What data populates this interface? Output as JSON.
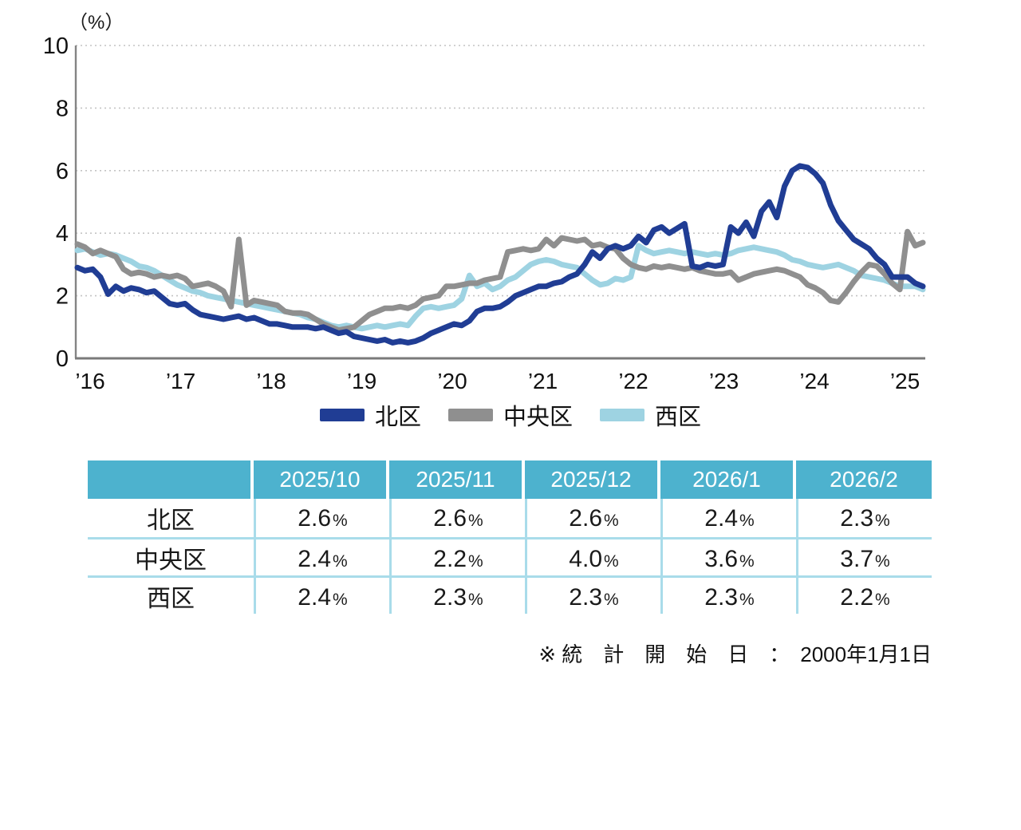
{
  "chart": {
    "unit_label": "（%）"
  },
  "chart_data": {
    "type": "line",
    "title": "",
    "ylabel": "%",
    "ylim": [
      0,
      10
    ],
    "y_tick_step": 2,
    "y_ticks": [
      "10",
      "8",
      "6",
      "4",
      "2",
      "0"
    ],
    "x_ticks": [
      "’16",
      "’17",
      "’18",
      "’19",
      "’20",
      "’21",
      "’22",
      "’23",
      "’24",
      "’25"
    ],
    "x_interval": "monthly",
    "grid": "dotted-horizontal",
    "legend_position": "bottom",
    "series": [
      {
        "name": "北区",
        "color": "#203d94",
        "values": [
          2.9,
          2.8,
          2.85,
          2.6,
          2.05,
          2.3,
          2.15,
          2.25,
          2.2,
          2.1,
          2.15,
          1.95,
          1.75,
          1.7,
          1.75,
          1.55,
          1.4,
          1.35,
          1.3,
          1.25,
          1.3,
          1.35,
          1.25,
          1.3,
          1.2,
          1.1,
          1.1,
          1.05,
          1.0,
          1.0,
          1.0,
          0.95,
          1.0,
          0.9,
          0.8,
          0.85,
          0.7,
          0.65,
          0.6,
          0.55,
          0.6,
          0.5,
          0.55,
          0.5,
          0.55,
          0.65,
          0.8,
          0.9,
          1.0,
          1.1,
          1.05,
          1.2,
          1.5,
          1.6,
          1.6,
          1.65,
          1.8,
          2.0,
          2.1,
          2.2,
          2.3,
          2.3,
          2.4,
          2.45,
          2.6,
          2.7,
          3.0,
          3.4,
          3.2,
          3.5,
          3.6,
          3.5,
          3.6,
          3.9,
          3.7,
          4.1,
          4.2,
          4.0,
          4.15,
          4.3,
          2.95,
          2.9,
          3.0,
          2.95,
          3.0,
          4.2,
          4.0,
          4.35,
          3.9,
          4.7,
          5.0,
          4.5,
          5.5,
          6.0,
          6.15,
          6.1,
          5.9,
          5.6,
          4.9,
          4.4,
          4.1,
          3.8,
          3.65,
          3.5,
          3.2,
          3.0,
          2.6,
          2.6,
          2.6,
          2.4,
          2.3
        ]
      },
      {
        "name": "中央区",
        "color": "#8f8f8f",
        "values": [
          3.65,
          3.55,
          3.35,
          3.45,
          3.35,
          3.25,
          2.85,
          2.7,
          2.75,
          2.7,
          2.6,
          2.65,
          2.6,
          2.65,
          2.55,
          2.3,
          2.35,
          2.4,
          2.3,
          2.15,
          1.65,
          3.8,
          1.7,
          1.85,
          1.8,
          1.75,
          1.7,
          1.5,
          1.45,
          1.45,
          1.4,
          1.25,
          1.1,
          1.0,
          0.9,
          0.95,
          1.0,
          1.2,
          1.4,
          1.5,
          1.6,
          1.6,
          1.65,
          1.6,
          1.7,
          1.9,
          1.95,
          2.0,
          2.3,
          2.3,
          2.35,
          2.4,
          2.4,
          2.5,
          2.55,
          2.6,
          3.4,
          3.45,
          3.5,
          3.45,
          3.5,
          3.8,
          3.6,
          3.85,
          3.8,
          3.75,
          3.8,
          3.6,
          3.65,
          3.55,
          3.5,
          3.2,
          3.0,
          2.9,
          2.85,
          2.95,
          2.9,
          2.95,
          2.9,
          2.85,
          2.9,
          2.8,
          2.75,
          2.7,
          2.7,
          2.75,
          2.5,
          2.6,
          2.7,
          2.75,
          2.8,
          2.85,
          2.8,
          2.7,
          2.6,
          2.35,
          2.25,
          2.1,
          1.85,
          1.8,
          2.1,
          2.45,
          2.75,
          3.0,
          2.95,
          2.7,
          2.4,
          2.2,
          4.05,
          3.6,
          3.7
        ]
      },
      {
        "name": "西区",
        "color": "#9ed3e2",
        "values": [
          3.45,
          3.5,
          3.4,
          3.3,
          3.35,
          3.3,
          3.2,
          3.1,
          2.95,
          2.9,
          2.8,
          2.65,
          2.5,
          2.35,
          2.25,
          2.15,
          2.1,
          2.0,
          1.95,
          1.9,
          1.85,
          1.8,
          1.75,
          1.7,
          1.65,
          1.6,
          1.55,
          1.5,
          1.45,
          1.4,
          1.3,
          1.25,
          1.15,
          1.05,
          1.0,
          1.05,
          1.0,
          0.95,
          1.0,
          1.05,
          1.0,
          1.05,
          1.1,
          1.05,
          1.35,
          1.6,
          1.65,
          1.6,
          1.65,
          1.7,
          1.9,
          2.65,
          2.3,
          2.4,
          2.2,
          2.3,
          2.5,
          2.6,
          2.8,
          3.0,
          3.1,
          3.15,
          3.1,
          3.0,
          2.95,
          2.9,
          2.7,
          2.5,
          2.35,
          2.4,
          2.55,
          2.5,
          2.6,
          3.6,
          3.45,
          3.35,
          3.4,
          3.45,
          3.4,
          3.35,
          3.4,
          3.35,
          3.3,
          3.35,
          3.3,
          3.35,
          3.45,
          3.5,
          3.55,
          3.5,
          3.45,
          3.4,
          3.3,
          3.15,
          3.1,
          3.0,
          2.95,
          2.9,
          2.95,
          3.0,
          2.9,
          2.8,
          2.65,
          2.6,
          2.55,
          2.5,
          2.4,
          2.3,
          2.3,
          2.3,
          2.2
        ]
      }
    ]
  },
  "legend": {
    "items": [
      {
        "label": "北区",
        "color": "#203d94"
      },
      {
        "label": "中央区",
        "color": "#8f8f8f"
      },
      {
        "label": "西区",
        "color": "#9ed3e2"
      }
    ]
  },
  "table": {
    "header_bg": "#4db2ce",
    "separator_color": "#a9dcea",
    "percent_suffix": "%",
    "header": [
      "",
      "2025/10",
      "2025/11",
      "2025/12",
      "2026/1",
      "2026/2"
    ],
    "rows": [
      {
        "label": "北区",
        "values": [
          "2.6",
          "2.6",
          "2.6",
          "2.4",
          "2.3"
        ]
      },
      {
        "label": "中央区",
        "values": [
          "2.4",
          "2.2",
          "4.0",
          "3.6",
          "3.7"
        ]
      },
      {
        "label": "西区",
        "values": [
          "2.4",
          "2.3",
          "2.3",
          "2.3",
          "2.2"
        ]
      }
    ]
  },
  "footnote": "※ 統　計　開　始　日　：　2000年1月1日"
}
